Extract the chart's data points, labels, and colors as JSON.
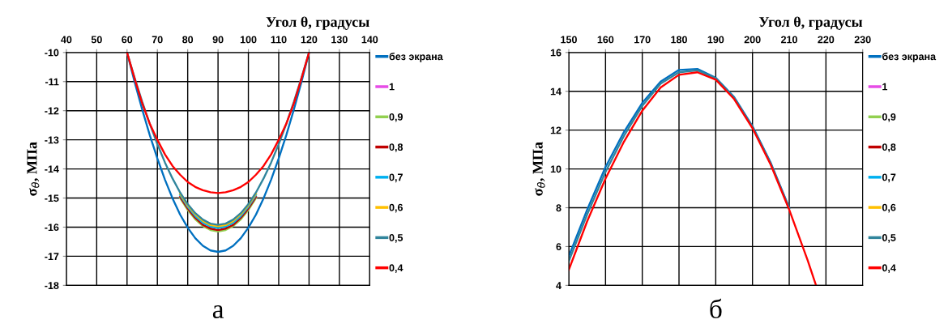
{
  "chart_data": [
    {
      "type": "line",
      "xlabel": "Угол θ, градусы",
      "ylabel": "σ$_{θ}$, МПа",
      "annotations": [
        "а"
      ],
      "x": [
        60,
        62.5,
        65,
        67.5,
        70,
        72.5,
        75,
        77.5,
        80,
        82.5,
        85,
        87.5,
        90,
        92.5,
        95,
        97.5,
        100,
        102.5,
        105,
        107.5,
        110,
        112.5,
        115,
        117.5,
        120
      ],
      "xlim": [
        40,
        140
      ],
      "xticks": [
        40,
        50,
        60,
        70,
        80,
        90,
        100,
        110,
        120,
        130,
        140
      ],
      "ylim": [
        -18,
        -10
      ],
      "yticks": [
        -18,
        -17,
        -16,
        -15,
        -14,
        -13,
        -12,
        -11,
        -10
      ],
      "grid": true,
      "legend": "right",
      "series": [
        {
          "name": "без экрана",
          "color": "#0070c0",
          "values": [
            -10.0,
            -11.01,
            -11.96,
            -12.84,
            -13.64,
            -14.37,
            -15.01,
            -15.57,
            -16.02,
            -16.38,
            -16.64,
            -16.8,
            -16.85,
            -16.8,
            -16.64,
            -16.38,
            -16.02,
            -15.57,
            -15.01,
            -14.37,
            -13.64,
            -12.84,
            -11.96,
            -11.01,
            -10.0
          ]
        },
        {
          "name": "1",
          "color": "#e64ce6",
          "values": [
            null,
            null,
            null,
            null,
            null,
            null,
            null,
            null,
            null,
            null,
            null,
            null,
            null,
            null,
            null,
            null,
            null,
            null,
            null,
            null,
            null,
            null,
            null,
            null,
            null
          ]
        },
        {
          "name": "0,9",
          "color": "#92d050",
          "values": [
            null,
            null,
            null,
            null,
            null,
            null,
            null,
            -15.0,
            -15.41,
            -15.73,
            -15.96,
            -16.1,
            -16.15,
            -16.1,
            -15.96,
            -15.73,
            -15.41,
            -15.0,
            null,
            null,
            null,
            null,
            null,
            null,
            null
          ]
        },
        {
          "name": "0,8",
          "color": "#c00000",
          "values": [
            null,
            null,
            null,
            null,
            null,
            null,
            null,
            -14.96,
            -15.36,
            -15.68,
            -15.92,
            -16.05,
            -16.1,
            -16.05,
            -15.92,
            -15.68,
            -15.36,
            -14.96,
            null,
            null,
            null,
            null,
            null,
            null,
            null
          ]
        },
        {
          "name": "0,7",
          "color": "#00b0f0",
          "values": [
            null,
            null,
            null,
            null,
            null,
            null,
            null,
            -14.9,
            -15.3,
            -15.62,
            -15.85,
            -15.98,
            -16.03,
            -15.98,
            -15.85,
            -15.62,
            -15.3,
            -14.9,
            null,
            null,
            null,
            null,
            null,
            null,
            null
          ]
        },
        {
          "name": "0,6",
          "color": "#ffc000",
          "values": [
            null,
            null,
            null,
            null,
            null,
            null,
            null,
            -14.85,
            -15.25,
            -15.56,
            -15.79,
            -15.93,
            -15.97,
            -15.93,
            -15.79,
            -15.56,
            -15.25,
            -14.85,
            null,
            null,
            null,
            null,
            null,
            null,
            null
          ]
        },
        {
          "name": "0,5",
          "color": "#31859c",
          "values": [
            -10.0,
            -10.87,
            -11.69,
            -12.45,
            -13.15,
            -13.78,
            -14.33,
            -14.81,
            -15.21,
            -15.52,
            -15.74,
            -15.88,
            -15.92,
            -15.88,
            -15.74,
            -15.52,
            -15.21,
            -14.81,
            -14.33,
            -13.78,
            -13.15,
            -12.45,
            -11.69,
            -10.87,
            -10.0
          ]
        },
        {
          "name": "0,4",
          "color": "#ff0000",
          "values": [
            -10.0,
            -10.9,
            -11.75,
            -12.45,
            -13.0,
            -13.5,
            -13.9,
            -14.2,
            -14.45,
            -14.62,
            -14.73,
            -14.8,
            -14.83,
            -14.8,
            -14.73,
            -14.62,
            -14.45,
            -14.2,
            -13.9,
            -13.5,
            -13.0,
            -12.45,
            -11.75,
            -10.9,
            -10.0
          ]
        }
      ]
    },
    {
      "type": "line",
      "xlabel": "Угол θ, градусы",
      "ylabel": "σ$_{θ}$, МПа",
      "annotations": [
        "б"
      ],
      "x": [
        150,
        155,
        160,
        165,
        170,
        175,
        180,
        185,
        190,
        195,
        200,
        205,
        210,
        215,
        217.3
      ],
      "xlim": [
        150,
        230
      ],
      "xticks": [
        150,
        160,
        170,
        180,
        190,
        200,
        210,
        220,
        230
      ],
      "ylim": [
        4,
        16
      ],
      "yticks": [
        4,
        6,
        8,
        10,
        12,
        14,
        16
      ],
      "grid": true,
      "legend": "right",
      "series": [
        {
          "name": "без экрана",
          "color": "#0070c0",
          "values": [
            5.5,
            7.9,
            10.1,
            11.9,
            13.4,
            14.5,
            15.1,
            15.15,
            14.7,
            13.7,
            12.2,
            10.3,
            8.0,
            null,
            null
          ]
        },
        {
          "name": "1",
          "color": "#e64ce6",
          "values": [
            null,
            null,
            null,
            null,
            null,
            null,
            null,
            null,
            null,
            null,
            null,
            null,
            null,
            null,
            null
          ]
        },
        {
          "name": "0,9",
          "color": "#92d050",
          "values": [
            null,
            null,
            null,
            null,
            null,
            null,
            null,
            null,
            null,
            null,
            null,
            null,
            null,
            null,
            null
          ]
        },
        {
          "name": "0,8",
          "color": "#c00000",
          "values": [
            null,
            null,
            null,
            null,
            null,
            null,
            null,
            null,
            null,
            null,
            null,
            null,
            null,
            null,
            null
          ]
        },
        {
          "name": "0,7",
          "color": "#00b0f0",
          "values": [
            null,
            null,
            null,
            null,
            null,
            null,
            null,
            null,
            null,
            null,
            null,
            null,
            null,
            null,
            null
          ]
        },
        {
          "name": "0,6",
          "color": "#ffc000",
          "values": [
            null,
            null,
            null,
            null,
            null,
            null,
            null,
            null,
            null,
            null,
            null,
            null,
            null,
            null,
            null
          ]
        },
        {
          "name": "0,5",
          "color": "#31859c",
          "values": [
            5.25,
            7.65,
            9.85,
            11.7,
            13.25,
            14.4,
            14.98,
            15.08,
            14.67,
            13.66,
            12.16,
            10.26,
            7.96,
            null,
            null
          ]
        },
        {
          "name": "0,4",
          "color": "#ff0000",
          "values": [
            4.8,
            7.3,
            9.5,
            11.4,
            13.0,
            14.2,
            14.85,
            14.98,
            14.6,
            13.6,
            12.1,
            10.2,
            7.9,
            5.3,
            4.0
          ]
        }
      ]
    }
  ]
}
